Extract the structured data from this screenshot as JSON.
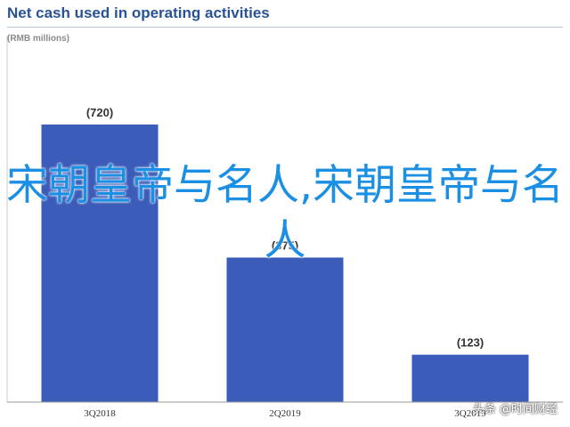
{
  "chart_data": {
    "type": "bar",
    "title": "Net cash used in operating activities",
    "subtitle": "(RMB millions)",
    "categories": [
      "3Q2018",
      "2Q2019",
      "3Q2019"
    ],
    "values": [
      -720,
      -375,
      -123
    ],
    "data_labels": [
      "(720)",
      "(375)",
      "(123)"
    ],
    "ylim": [
      0,
      900
    ],
    "grid": false,
    "legend": "none",
    "colors": {
      "bar": "#3b5cb8",
      "title": "#2a5298"
    }
  },
  "overlay": {
    "text": "宋朝皇帝与名人,宋朝皇帝与名人"
  },
  "watermark": {
    "text": "头条 @时间财经"
  }
}
